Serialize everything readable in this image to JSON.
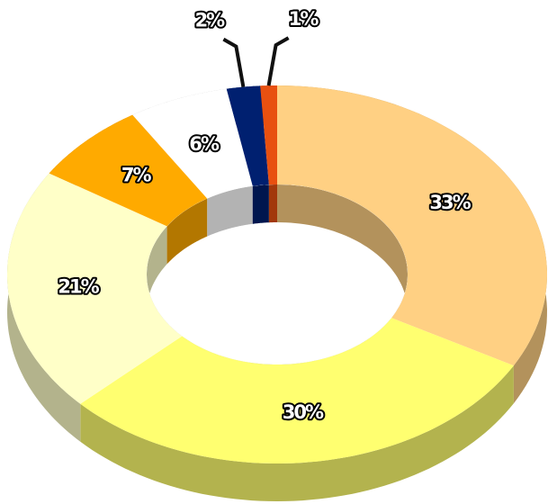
{
  "chart_data": {
    "type": "pie",
    "donut": true,
    "values": [
      33,
      30,
      21,
      7,
      6,
      2,
      1
    ],
    "value_labels": [
      "33%",
      "30%",
      "21%",
      "7%",
      "6%",
      "2%",
      "1%"
    ],
    "colors": [
      "#ffd083",
      "#ffff70",
      "#ffffc8",
      "#ffaa00",
      "#ffffff",
      "#002070",
      "#e85010"
    ]
  }
}
